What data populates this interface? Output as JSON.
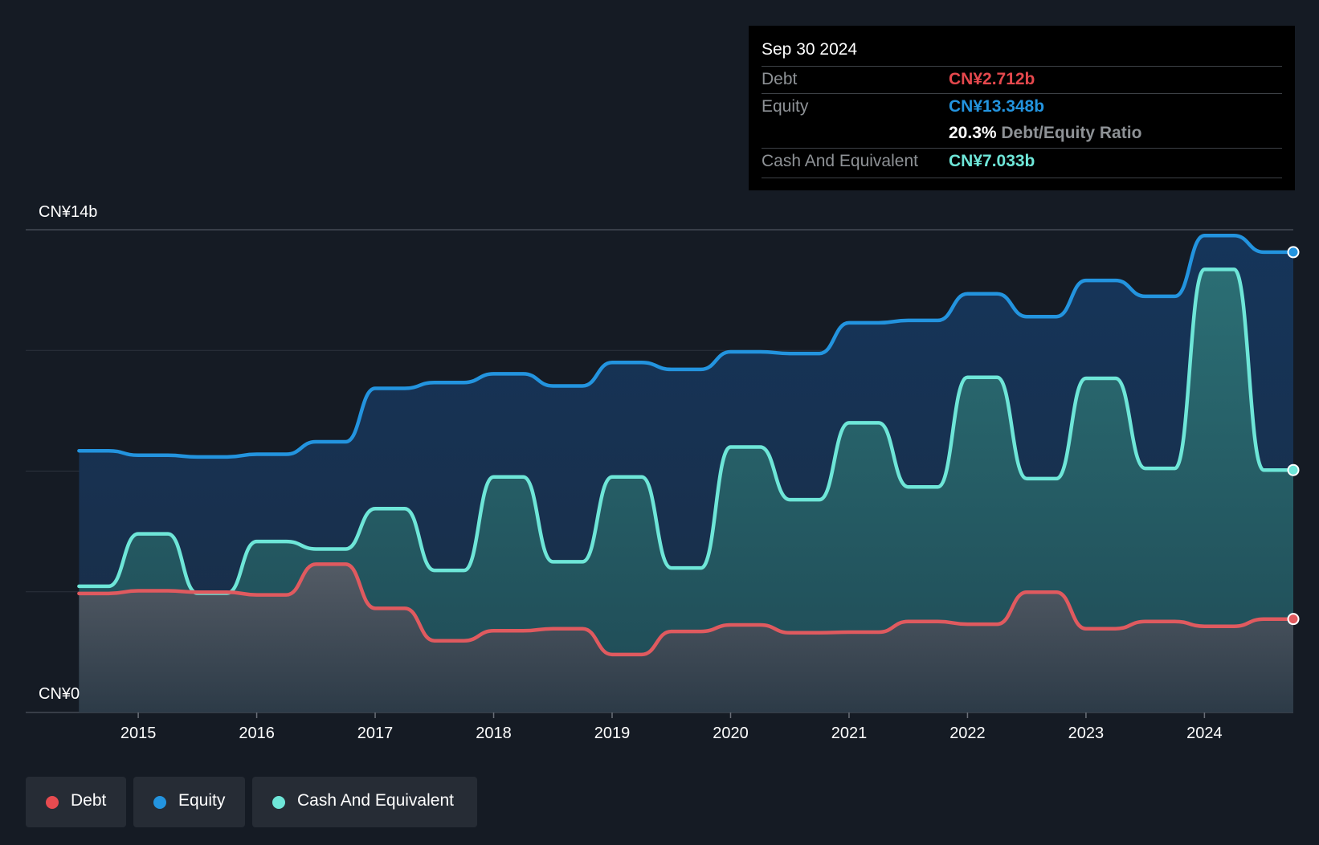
{
  "tooltip": {
    "date": "Sep 30 2024",
    "debt_label": "Debt",
    "debt_value": "CN¥2.712b",
    "equity_label": "Equity",
    "equity_value": "CN¥13.348b",
    "ratio_pct": "20.3%",
    "ratio_label": "Debt/Equity Ratio",
    "cash_label": "Cash And Equivalent",
    "cash_value": "CN¥7.033b"
  },
  "legend": [
    {
      "label": "Debt",
      "color": "#e64b50"
    },
    {
      "label": "Equity",
      "color": "#2394df"
    },
    {
      "label": "Cash And Equivalent",
      "color": "#6ee6d8"
    }
  ],
  "colors": {
    "debt": "#e05a5f",
    "equity": "#2394df",
    "cash": "#6ee6d8",
    "background": "#151b24"
  },
  "chart_data": {
    "type": "area",
    "ylim": [
      0,
      14
    ],
    "y_tick_labels": [
      "CN¥0",
      "CN¥14b"
    ],
    "x_tick_labels": [
      "2015",
      "2016",
      "2017",
      "2018",
      "2019",
      "2020",
      "2021",
      "2022",
      "2023",
      "2024"
    ],
    "x_ticks": [
      2015,
      2016,
      2017,
      2018,
      2019,
      2020,
      2021,
      2022,
      2023,
      2024
    ],
    "xlim": [
      2014.05,
      2024.75
    ],
    "grid": true,
    "legend_position": "bottom-left",
    "series": [
      {
        "name": "Debt",
        "points": [
          [
            2014.5,
            3.45
          ],
          [
            2014.75,
            3.45
          ],
          [
            2015,
            3.53
          ],
          [
            2015.25,
            3.53
          ],
          [
            2015.5,
            3.49
          ],
          [
            2015.75,
            3.49
          ],
          [
            2016,
            3.41
          ],
          [
            2016.25,
            3.41
          ],
          [
            2016.5,
            4.3
          ],
          [
            2016.75,
            4.3
          ],
          [
            2017,
            3.02
          ],
          [
            2017.25,
            3.02
          ],
          [
            2017.5,
            2.08
          ],
          [
            2017.75,
            2.08
          ],
          [
            2018,
            2.37
          ],
          [
            2018.25,
            2.37
          ],
          [
            2018.5,
            2.43
          ],
          [
            2018.75,
            2.43
          ],
          [
            2019,
            1.68
          ],
          [
            2019.25,
            1.68
          ],
          [
            2019.5,
            2.35
          ],
          [
            2019.75,
            2.35
          ],
          [
            2020,
            2.54
          ],
          [
            2020.25,
            2.54
          ],
          [
            2020.5,
            2.31
          ],
          [
            2020.75,
            2.31
          ],
          [
            2021,
            2.33
          ],
          [
            2021.25,
            2.33
          ],
          [
            2021.5,
            2.64
          ],
          [
            2021.75,
            2.64
          ],
          [
            2022,
            2.56
          ],
          [
            2022.25,
            2.56
          ],
          [
            2022.5,
            3.49
          ],
          [
            2022.75,
            3.49
          ],
          [
            2023,
            2.43
          ],
          [
            2023.25,
            2.43
          ],
          [
            2023.5,
            2.64
          ],
          [
            2023.75,
            2.64
          ],
          [
            2024,
            2.5
          ],
          [
            2024.25,
            2.5
          ],
          [
            2024.5,
            2.71
          ],
          [
            2024.75,
            2.71
          ]
        ]
      },
      {
        "name": "Equity",
        "points": [
          [
            2014.5,
            7.59
          ],
          [
            2014.75,
            7.59
          ],
          [
            2015,
            7.46
          ],
          [
            2015.25,
            7.46
          ],
          [
            2015.5,
            7.41
          ],
          [
            2015.75,
            7.41
          ],
          [
            2016,
            7.49
          ],
          [
            2016.25,
            7.49
          ],
          [
            2016.5,
            7.85
          ],
          [
            2016.75,
            7.85
          ],
          [
            2017,
            9.4
          ],
          [
            2017.25,
            9.4
          ],
          [
            2017.5,
            9.57
          ],
          [
            2017.75,
            9.57
          ],
          [
            2018,
            9.82
          ],
          [
            2018.25,
            9.82
          ],
          [
            2018.5,
            9.47
          ],
          [
            2018.75,
            9.47
          ],
          [
            2019,
            10.15
          ],
          [
            2019.25,
            10.15
          ],
          [
            2019.5,
            9.95
          ],
          [
            2019.75,
            9.95
          ],
          [
            2020,
            10.46
          ],
          [
            2020.25,
            10.46
          ],
          [
            2020.5,
            10.41
          ],
          [
            2020.75,
            10.41
          ],
          [
            2021,
            11.3
          ],
          [
            2021.25,
            11.3
          ],
          [
            2021.5,
            11.37
          ],
          [
            2021.75,
            11.37
          ],
          [
            2022,
            12.14
          ],
          [
            2022.25,
            12.14
          ],
          [
            2022.5,
            11.48
          ],
          [
            2022.75,
            11.48
          ],
          [
            2023,
            12.53
          ],
          [
            2023.25,
            12.53
          ],
          [
            2023.5,
            12.07
          ],
          [
            2023.75,
            12.07
          ],
          [
            2024,
            13.83
          ],
          [
            2024.25,
            13.83
          ],
          [
            2024.5,
            13.35
          ],
          [
            2024.75,
            13.35
          ]
        ]
      },
      {
        "name": "Cash And Equivalent",
        "points": [
          [
            2014.5,
            3.66
          ],
          [
            2014.75,
            3.66
          ],
          [
            2015,
            5.18
          ],
          [
            2015.25,
            5.18
          ],
          [
            2015.5,
            3.46
          ],
          [
            2015.75,
            3.46
          ],
          [
            2016,
            4.96
          ],
          [
            2016.25,
            4.96
          ],
          [
            2016.5,
            4.74
          ],
          [
            2016.75,
            4.74
          ],
          [
            2017,
            5.91
          ],
          [
            2017.25,
            5.91
          ],
          [
            2017.5,
            4.12
          ],
          [
            2017.75,
            4.12
          ],
          [
            2018,
            6.83
          ],
          [
            2018.25,
            6.83
          ],
          [
            2018.5,
            4.37
          ],
          [
            2018.75,
            4.37
          ],
          [
            2019,
            6.83
          ],
          [
            2019.25,
            6.83
          ],
          [
            2019.5,
            4.19
          ],
          [
            2019.75,
            4.19
          ],
          [
            2020,
            7.7
          ],
          [
            2020.25,
            7.7
          ],
          [
            2020.5,
            6.17
          ],
          [
            2020.75,
            6.17
          ],
          [
            2021,
            8.4
          ],
          [
            2021.25,
            8.4
          ],
          [
            2021.5,
            6.54
          ],
          [
            2021.75,
            6.54
          ],
          [
            2022,
            9.72
          ],
          [
            2022.25,
            9.72
          ],
          [
            2022.5,
            6.78
          ],
          [
            2022.75,
            6.78
          ],
          [
            2023,
            9.69
          ],
          [
            2023.25,
            9.69
          ],
          [
            2023.5,
            7.08
          ],
          [
            2023.75,
            7.08
          ],
          [
            2024,
            12.85
          ],
          [
            2024.25,
            12.85
          ],
          [
            2024.5,
            7.03
          ],
          [
            2024.75,
            7.03
          ]
        ]
      }
    ]
  }
}
